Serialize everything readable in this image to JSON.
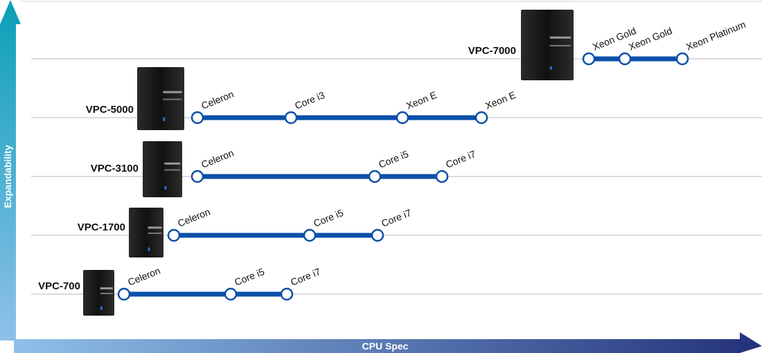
{
  "axes": {
    "x": "CPU Spec",
    "y": "Expandability"
  },
  "products": [
    {
      "name": "VPC-7000",
      "cpus": [
        "Xeon Gold",
        "Xeon Gold",
        "Xeon Platinum"
      ]
    },
    {
      "name": "VPC-5000",
      "cpus": [
        "Celeron",
        "Core i3",
        "Xeon E",
        "Xeon E"
      ]
    },
    {
      "name": "VPC-3100",
      "cpus": [
        "Celeron",
        "Core i5",
        "Core i7"
      ]
    },
    {
      "name": "VPC-1700",
      "cpus": [
        "Celeron",
        "Core i5",
        "Core i7"
      ]
    },
    {
      "name": "VPC-700",
      "cpus": [
        "Celeron",
        "Core i5",
        "Core i7"
      ]
    }
  ]
}
